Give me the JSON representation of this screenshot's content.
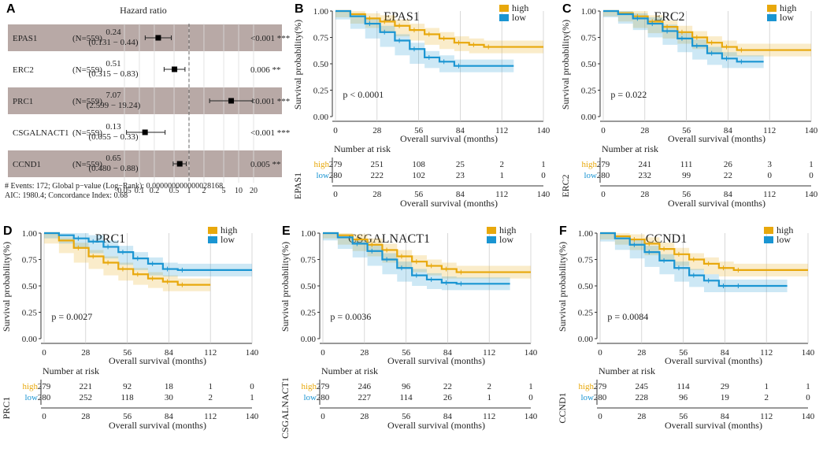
{
  "colors": {
    "high": "#E8A80C",
    "low": "#1A95D2",
    "band": "#B8A9A6",
    "grid": "#C8C8C8"
  },
  "chart_data": [
    {
      "panel": "A",
      "type": "forest",
      "title": "Hazard ratio",
      "xticks": [
        "0.05",
        "0.1",
        "0.2",
        "0.5",
        "1",
        "2",
        "5",
        "10",
        "20"
      ],
      "rows": [
        {
          "gene": "EPAS1",
          "n": "(N=559)",
          "hr": "0.24",
          "ci": "(0.131 − 0.44)",
          "p": "<0.001 ***",
          "est": 0.24,
          "lo": 0.131,
          "hi": 0.44,
          "shaded": true
        },
        {
          "gene": "ERC2",
          "n": "(N=559)",
          "hr": "0.51",
          "ci": "(0.315 − 0.83)",
          "p": "0.006 **",
          "est": 0.51,
          "lo": 0.315,
          "hi": 0.83,
          "shaded": false
        },
        {
          "gene": "PRC1",
          "n": "(N=559)",
          "hr": "7.07",
          "ci": "(2.599 − 19.24)",
          "p": "<0.001 ***",
          "est": 7.07,
          "lo": 2.599,
          "hi": 19.24,
          "shaded": true
        },
        {
          "gene": "CSGALNACT1",
          "n": "(N=559)",
          "hr": "0.13",
          "ci": "(0.055 − 0.33)",
          "p": "<0.001 ***",
          "est": 0.13,
          "lo": 0.055,
          "hi": 0.33,
          "shaded": false
        },
        {
          "gene": "CCND1",
          "n": "(N=559)",
          "hr": "0.65",
          "ci": "(0.480 − 0.88)",
          "p": "0.005 **",
          "est": 0.65,
          "lo": 0.48,
          "hi": 0.88,
          "shaded": true
        }
      ],
      "footer1": "# Events: 172; Global p−value (Log−Rank): 0.000000000000028168",
      "footer2": "AIC: 1980.4; Concordance Index: 0.68"
    },
    {
      "panel": "B",
      "type": "km",
      "title": "EPAS1",
      "pvalue": "p < 0.0001",
      "ylabel": "Survival probability(%)",
      "xlabel": "Overall survival (months)",
      "yticks": [
        "0.00",
        "0.25",
        "0.50",
        "0.75",
        "1.00"
      ],
      "xticks": [
        "0",
        "28",
        "56",
        "84",
        "112",
        "140"
      ],
      "legend": [
        "high",
        "low"
      ],
      "risk_title": "Number at risk",
      "risk_ylabel": "EPAS1",
      "series": [
        {
          "name": "high",
          "points": [
            [
              0,
              1
            ],
            [
              10,
              0.97
            ],
            [
              20,
              0.93
            ],
            [
              30,
              0.9
            ],
            [
              40,
              0.86
            ],
            [
              50,
              0.82
            ],
            [
              60,
              0.78
            ],
            [
              70,
              0.74
            ],
            [
              80,
              0.7
            ],
            [
              90,
              0.68
            ],
            [
              100,
              0.66
            ],
            [
              140,
              0.66
            ]
          ]
        },
        {
          "name": "low",
          "points": [
            [
              0,
              1
            ],
            [
              10,
              0.95
            ],
            [
              20,
              0.88
            ],
            [
              30,
              0.8
            ],
            [
              40,
              0.72
            ],
            [
              50,
              0.64
            ],
            [
              60,
              0.56
            ],
            [
              70,
              0.52
            ],
            [
              80,
              0.48
            ],
            [
              120,
              0.48
            ]
          ]
        }
      ],
      "risk": [
        [
          "279",
          "251",
          "108",
          "25",
          "2",
          "1"
        ],
        [
          "280",
          "222",
          "102",
          "23",
          "1",
          "0"
        ]
      ]
    },
    {
      "panel": "C",
      "type": "km",
      "title": "ERC2",
      "pvalue": "p = 0.022",
      "ylabel": "Survival probability(%)",
      "xlabel": "Overall survival (months)",
      "yticks": [
        "0.00",
        "0.25",
        "0.50",
        "0.75",
        "1.00"
      ],
      "xticks": [
        "0",
        "28",
        "56",
        "84",
        "112",
        "140"
      ],
      "legend": [
        "high",
        "low"
      ],
      "risk_title": "Number at risk",
      "risk_ylabel": "ERC2",
      "series": [
        {
          "name": "high",
          "points": [
            [
              0,
              1
            ],
            [
              10,
              0.98
            ],
            [
              20,
              0.95
            ],
            [
              30,
              0.9
            ],
            [
              40,
              0.85
            ],
            [
              50,
              0.8
            ],
            [
              60,
              0.75
            ],
            [
              70,
              0.7
            ],
            [
              80,
              0.66
            ],
            [
              90,
              0.63
            ],
            [
              140,
              0.63
            ]
          ]
        },
        {
          "name": "low",
          "points": [
            [
              0,
              1
            ],
            [
              10,
              0.97
            ],
            [
              20,
              0.93
            ],
            [
              30,
              0.88
            ],
            [
              40,
              0.81
            ],
            [
              50,
              0.74
            ],
            [
              60,
              0.67
            ],
            [
              70,
              0.6
            ],
            [
              80,
              0.55
            ],
            [
              90,
              0.52
            ],
            [
              108,
              0.52
            ]
          ]
        }
      ],
      "risk": [
        [
          "279",
          "241",
          "111",
          "26",
          "3",
          "1"
        ],
        [
          "280",
          "232",
          "99",
          "22",
          "0",
          "0"
        ]
      ]
    },
    {
      "panel": "D",
      "type": "km",
      "title": "PRC1",
      "pvalue": "p = 0.0027",
      "ylabel": "Survival probability(%)",
      "xlabel": "Overall survival (months)",
      "yticks": [
        "0.00",
        "0.25",
        "0.50",
        "0.75",
        "1.00"
      ],
      "xticks": [
        "0",
        "28",
        "56",
        "84",
        "112",
        "140"
      ],
      "legend": [
        "high",
        "low"
      ],
      "risk_title": "Number at risk",
      "risk_ylabel": "PRC1",
      "series": [
        {
          "name": "high",
          "points": [
            [
              0,
              1
            ],
            [
              10,
              0.93
            ],
            [
              20,
              0.86
            ],
            [
              30,
              0.78
            ],
            [
              40,
              0.72
            ],
            [
              50,
              0.66
            ],
            [
              60,
              0.61
            ],
            [
              70,
              0.57
            ],
            [
              80,
              0.54
            ],
            [
              90,
              0.51
            ],
            [
              112,
              0.51
            ]
          ]
        },
        {
          "name": "low",
          "points": [
            [
              0,
              1
            ],
            [
              10,
              0.98
            ],
            [
              20,
              0.95
            ],
            [
              30,
              0.92
            ],
            [
              40,
              0.87
            ],
            [
              50,
              0.82
            ],
            [
              60,
              0.76
            ],
            [
              70,
              0.71
            ],
            [
              80,
              0.66
            ],
            [
              90,
              0.65
            ],
            [
              140,
              0.65
            ]
          ]
        }
      ],
      "risk": [
        [
          "279",
          "221",
          "92",
          "18",
          "1",
          "0"
        ],
        [
          "280",
          "252",
          "118",
          "30",
          "2",
          "1"
        ]
      ]
    },
    {
      "panel": "E",
      "type": "km",
      "title": "CSGALNACT1",
      "pvalue": "p = 0.0036",
      "ylabel": "Survival probability(%)",
      "xlabel": "Overall survival (months)",
      "yticks": [
        "0.00",
        "0.25",
        "0.50",
        "0.75",
        "1.00"
      ],
      "xticks": [
        "0",
        "28",
        "56",
        "84",
        "112",
        "140"
      ],
      "legend": [
        "high",
        "low"
      ],
      "risk_title": "Number at risk",
      "risk_ylabel": "CSGALNACT1",
      "series": [
        {
          "name": "high",
          "points": [
            [
              0,
              1
            ],
            [
              10,
              0.98
            ],
            [
              20,
              0.94
            ],
            [
              30,
              0.89
            ],
            [
              40,
              0.84
            ],
            [
              50,
              0.78
            ],
            [
              60,
              0.73
            ],
            [
              70,
              0.69
            ],
            [
              80,
              0.66
            ],
            [
              90,
              0.63
            ],
            [
              140,
              0.63
            ]
          ]
        },
        {
          "name": "low",
          "points": [
            [
              0,
              1
            ],
            [
              10,
              0.96
            ],
            [
              20,
              0.9
            ],
            [
              30,
              0.83
            ],
            [
              40,
              0.75
            ],
            [
              50,
              0.67
            ],
            [
              60,
              0.6
            ],
            [
              70,
              0.56
            ],
            [
              80,
              0.53
            ],
            [
              90,
              0.52
            ],
            [
              126,
              0.52
            ]
          ]
        }
      ],
      "risk": [
        [
          "279",
          "246",
          "96",
          "22",
          "2",
          "1"
        ],
        [
          "280",
          "227",
          "114",
          "26",
          "1",
          "0"
        ]
      ]
    },
    {
      "panel": "F",
      "type": "km",
      "title": "CCND1",
      "pvalue": "p = 0.0084",
      "ylabel": "Survival probability(%)",
      "xlabel": "Overall survival (months)",
      "yticks": [
        "0.00",
        "0.25",
        "0.50",
        "0.75",
        "1.00"
      ],
      "xticks": [
        "0",
        "28",
        "56",
        "84",
        "112",
        "140"
      ],
      "legend": [
        "high",
        "low"
      ],
      "risk_title": "Number at risk",
      "risk_ylabel": "CCND1",
      "series": [
        {
          "name": "high",
          "points": [
            [
              0,
              1
            ],
            [
              10,
              0.97
            ],
            [
              20,
              0.94
            ],
            [
              30,
              0.9
            ],
            [
              40,
              0.85
            ],
            [
              50,
              0.8
            ],
            [
              60,
              0.75
            ],
            [
              70,
              0.71
            ],
            [
              80,
              0.67
            ],
            [
              90,
              0.65
            ],
            [
              140,
              0.65
            ]
          ]
        },
        {
          "name": "low",
          "points": [
            [
              0,
              1
            ],
            [
              10,
              0.95
            ],
            [
              20,
              0.89
            ],
            [
              30,
              0.82
            ],
            [
              40,
              0.74
            ],
            [
              50,
              0.67
            ],
            [
              60,
              0.6
            ],
            [
              70,
              0.55
            ],
            [
              80,
              0.5
            ],
            [
              90,
              0.5
            ],
            [
              126,
              0.5
            ]
          ]
        }
      ],
      "risk": [
        [
          "279",
          "245",
          "114",
          "29",
          "1",
          "1"
        ],
        [
          "280",
          "228",
          "96",
          "19",
          "2",
          "0"
        ]
      ]
    }
  ]
}
